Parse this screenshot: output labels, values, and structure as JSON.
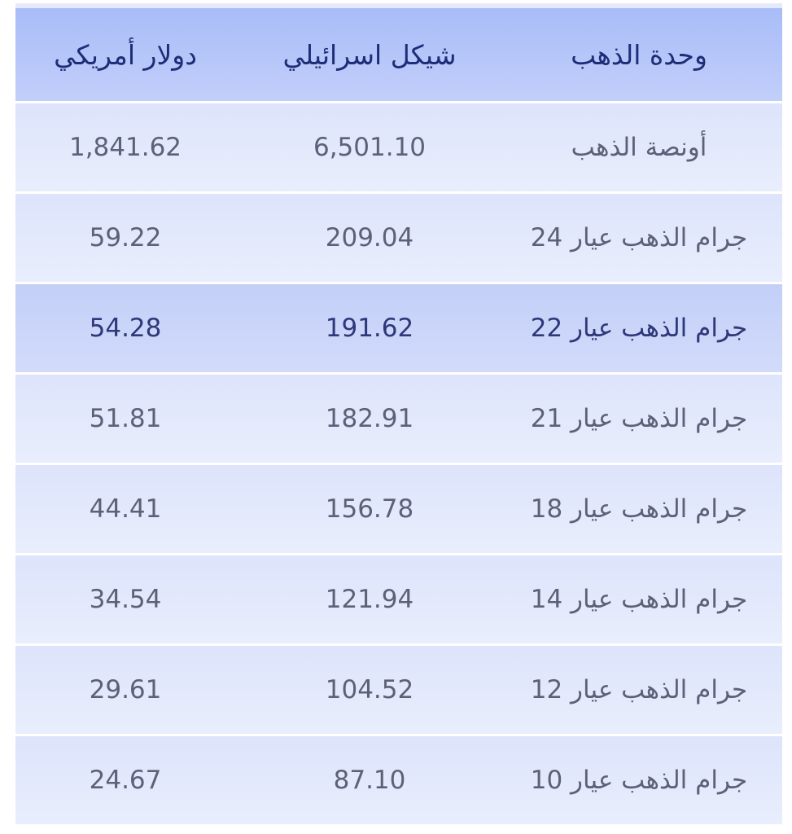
{
  "header": {
    "unit": "وحدة الذهب",
    "ils": "شيكل اسرائيلي",
    "usd": "دولار أمريكي"
  },
  "rows": [
    {
      "unit": "أونصة الذهب",
      "ils": "6,501.10",
      "usd": "1,841.62"
    },
    {
      "unit": "جرام الذهب عيار 24",
      "ils": "209.04",
      "usd": "59.22"
    },
    {
      "unit": "جرام الذهب عيار 22",
      "ils": "191.62",
      "usd": "54.28",
      "highlighted": true
    },
    {
      "unit": "جرام الذهب عيار 21",
      "ils": "182.91",
      "usd": "51.81"
    },
    {
      "unit": "جرام الذهب عيار 18",
      "ils": "156.78",
      "usd": "44.41"
    },
    {
      "unit": "جرام الذهب عيار 14",
      "ils": "121.94",
      "usd": "34.54"
    },
    {
      "unit": "جرام الذهب عيار 12",
      "ils": "104.52",
      "usd": "29.61"
    },
    {
      "unit": "جرام الذهب عيار 10",
      "ils": "87.10",
      "usd": "24.67"
    }
  ],
  "colors": {
    "header_bg": "#a8bcf8",
    "row_bg": "#e4e9fc",
    "highlight_bg": "#c8d3f9",
    "header_text": "#1e2d78",
    "text": "#5d6079"
  }
}
